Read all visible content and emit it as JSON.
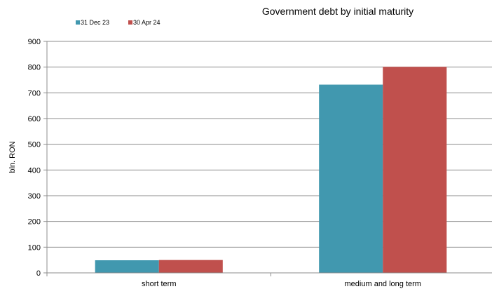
{
  "chart_data": {
    "type": "bar",
    "title": "Government debt by initial maturity",
    "ylabel": "bln. RON",
    "xlabel": "",
    "categories": [
      "short term",
      "medium and long term"
    ],
    "series": [
      {
        "name": "31 Dec 23",
        "color": "#4198AF",
        "values": [
          49,
          732
        ]
      },
      {
        "name": "30 Apr 24",
        "color": "#C0504D",
        "values": [
          50,
          801
        ]
      }
    ],
    "ylim": [
      0,
      900
    ],
    "yticks": [
      "0",
      "100",
      "200",
      "300",
      "400",
      "500",
      "600",
      "700",
      "800",
      "900"
    ],
    "grid": true,
    "legend": "top-left"
  }
}
